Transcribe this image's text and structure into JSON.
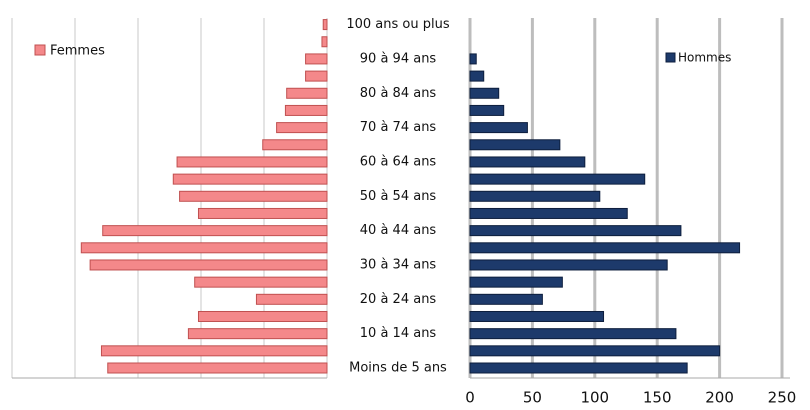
{
  "chart_data": {
    "type": "bar",
    "categories": [
      "Moins de 5 ans",
      null,
      "10 à 14 ans",
      null,
      "20 à 24 ans",
      null,
      "30 à 34 ans",
      null,
      "40 à 44 ans",
      null,
      "50 à 54 ans",
      null,
      "60 à 64 ans",
      null,
      "70 à 74 ans",
      null,
      "80 à 84 ans",
      null,
      "90 à 94 ans",
      null,
      "100 ans ou plus"
    ],
    "series": [
      {
        "name": "Femmes",
        "color": "#f4888a",
        "values": [
          174,
          179,
          110,
          102,
          56,
          105,
          188,
          195,
          178,
          102,
          117,
          122,
          119,
          51,
          40,
          33,
          32,
          17,
          17,
          4,
          3
        ]
      },
      {
        "name": "Hommes",
        "color": "#1d3a6b",
        "values": [
          174,
          200,
          165,
          107,
          58,
          74,
          158,
          216,
          169,
          126,
          104,
          140,
          92,
          72,
          46,
          27,
          23,
          11,
          5,
          0,
          0
        ]
      }
    ],
    "xlim": [
      0,
      250
    ],
    "xticks": [
      0,
      50,
      100,
      150,
      200,
      250
    ],
    "grid": true
  }
}
